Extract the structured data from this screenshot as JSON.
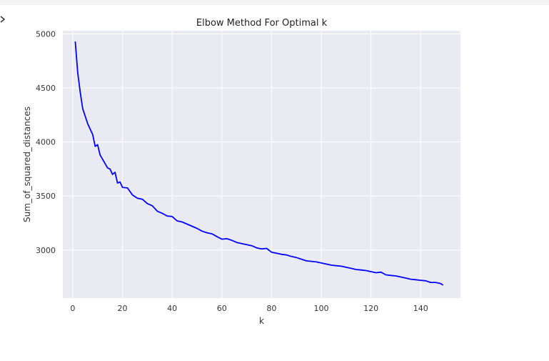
{
  "chart_data": {
    "type": "line",
    "title": "Elbow Method For Optimal k",
    "xlabel": "k",
    "ylabel": "Sum_of_squared_distances",
    "xlim": [
      -4,
      156
    ],
    "ylim": [
      2555,
      5030
    ],
    "xticks": [
      0,
      20,
      40,
      60,
      80,
      100,
      120,
      140
    ],
    "yticks": [
      3000,
      3500,
      4000,
      4500,
      5000
    ],
    "grid": true,
    "colors": {
      "line": "#0000ff",
      "plot_bg": "#eaeaf2",
      "grid": "#ffffff"
    },
    "series": [
      {
        "x": [
          1,
          2,
          3,
          4,
          6,
          8,
          9,
          10,
          11,
          12,
          14,
          15,
          16,
          17,
          18,
          19,
          20,
          22,
          24,
          26,
          28,
          30,
          32,
          34,
          36,
          38,
          40,
          42,
          44,
          46,
          48,
          50,
          52,
          54,
          56,
          58,
          60,
          62,
          64,
          66,
          68,
          70,
          72,
          74,
          76,
          78,
          80,
          82,
          84,
          86,
          88,
          90,
          92,
          94,
          96,
          98,
          100,
          102,
          104,
          106,
          108,
          110,
          112,
          114,
          116,
          118,
          120,
          122,
          124,
          126,
          128,
          130,
          132,
          134,
          136,
          138,
          140,
          142,
          144,
          146,
          148,
          149
        ],
        "y": [
          4930,
          4640,
          4460,
          4310,
          4170,
          4070,
          3960,
          3975,
          3880,
          3840,
          3760,
          3750,
          3700,
          3720,
          3620,
          3630,
          3580,
          3575,
          3510,
          3480,
          3470,
          3430,
          3410,
          3360,
          3340,
          3315,
          3310,
          3270,
          3260,
          3240,
          3220,
          3200,
          3175,
          3160,
          3150,
          3125,
          3100,
          3105,
          3090,
          3070,
          3060,
          3050,
          3040,
          3020,
          3010,
          3015,
          2980,
          2970,
          2960,
          2955,
          2940,
          2930,
          2915,
          2900,
          2895,
          2890,
          2880,
          2870,
          2860,
          2855,
          2850,
          2840,
          2830,
          2820,
          2815,
          2810,
          2800,
          2790,
          2795,
          2770,
          2765,
          2760,
          2750,
          2740,
          2730,
          2725,
          2720,
          2715,
          2700,
          2700,
          2690,
          2675
        ]
      }
    ]
  }
}
